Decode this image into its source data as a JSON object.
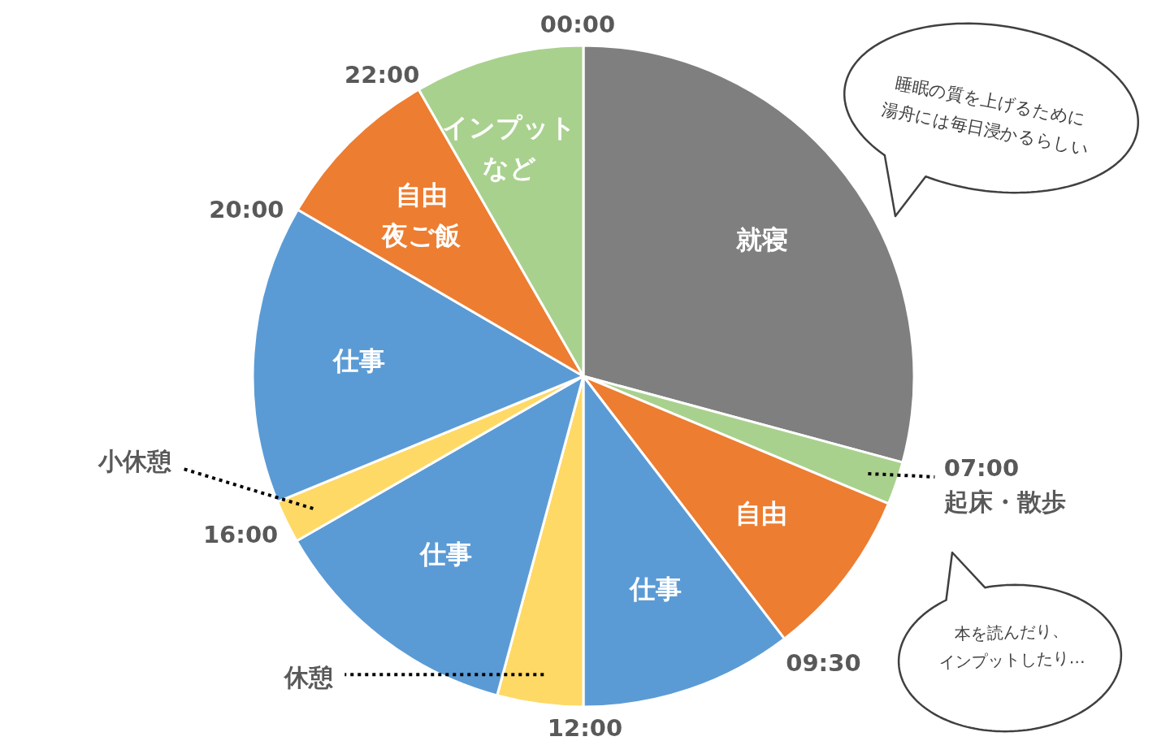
{
  "chart_data": {
    "type": "pie",
    "categories": [
      "就寝",
      "起床・散歩",
      "自由",
      "仕事",
      "休憩",
      "仕事",
      "小休憩",
      "仕事",
      "自由夜ご飯",
      "インプットなど"
    ],
    "values": [
      29.2,
      2.1,
      8.3,
      10.4,
      4.2,
      12.5,
      2.1,
      14.6,
      8.3,
      8.3
    ],
    "colors": [
      "#7f7f7f",
      "#a9d18e",
      "#ed7d31",
      "#5b9bd5",
      "#ffd966",
      "#5b9bd5",
      "#ffd966",
      "#5b9bd5",
      "#ed7d31",
      "#a9d18e"
    ],
    "annotations": [
      "00:00",
      "07:00",
      "09:30",
      "12:00",
      "16:00",
      "20:00",
      "22:00",
      "睡眠の質を上げるために湯舟には毎日浸かるらしい",
      "本を読んだり、インプットしたり…"
    ]
  }
}
